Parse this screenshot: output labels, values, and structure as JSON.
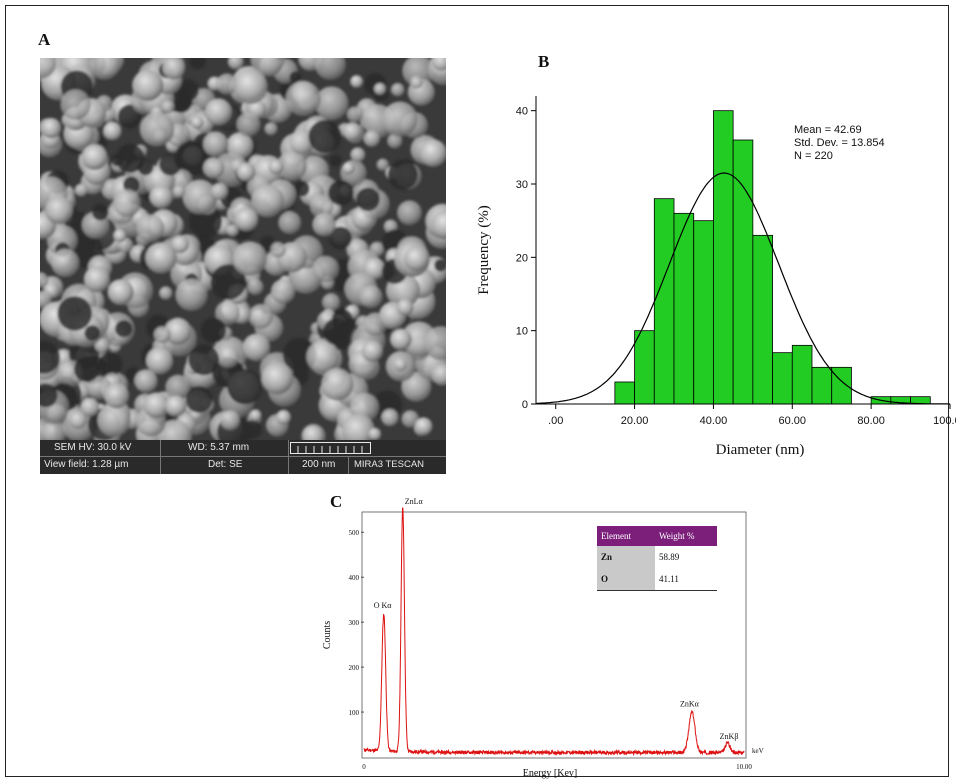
{
  "panels": {
    "a": "A",
    "b": "B",
    "c": "C"
  },
  "sem": {
    "hv": "SEM HV: 30.0 kV",
    "wd": "WD: 5.37 mm",
    "view_field": "View field: 1.28 µm",
    "det": "Det: SE",
    "scale": "200 nm",
    "brand": "MIRA3 TESCAN"
  },
  "histogram": {
    "stats": [
      "Mean = 42.69",
      "Std. Dev. = 13.854",
      "N = 220"
    ],
    "colors": {
      "bar": "#22cc22",
      "curve": "#000000"
    }
  },
  "edx_table": {
    "headers": [
      "Element",
      "Weight %"
    ],
    "rows": [
      {
        "element": "Zn",
        "weight": "58.89"
      },
      {
        "element": "O",
        "weight": "41.11"
      }
    ]
  },
  "chart_data": [
    {
      "type": "bar",
      "panel": "B",
      "xlabel": "Diameter (nm)",
      "ylabel": "Frequency (%)",
      "xlim": [
        -5,
        100
      ],
      "ylim": [
        0,
        42
      ],
      "xticks": [
        0,
        20,
        40,
        60,
        80,
        100
      ],
      "xtick_labels": [
        ".00",
        "20.00",
        "40.00",
        "60.00",
        "80.00",
        "100.00"
      ],
      "yticks": [
        0,
        10,
        20,
        30,
        40
      ],
      "bin_width": 5,
      "bins": [
        {
          "x0": 15,
          "value": 3
        },
        {
          "x0": 20,
          "value": 10
        },
        {
          "x0": 25,
          "value": 28
        },
        {
          "x0": 30,
          "value": 26
        },
        {
          "x0": 35,
          "value": 25
        },
        {
          "x0": 40,
          "value": 40
        },
        {
          "x0": 45,
          "value": 36
        },
        {
          "x0": 50,
          "value": 23
        },
        {
          "x0": 55,
          "value": 7
        },
        {
          "x0": 60,
          "value": 8
        },
        {
          "x0": 65,
          "value": 5
        },
        {
          "x0": 70,
          "value": 5
        },
        {
          "x0": 80,
          "value": 1
        },
        {
          "x0": 85,
          "value": 1
        },
        {
          "x0": 90,
          "value": 1
        }
      ],
      "curve": {
        "kind": "normal",
        "mean": 42.69,
        "sd": 13.854,
        "peak": 31.5
      }
    },
    {
      "type": "line",
      "panel": "C",
      "xlabel": "Energy [Kev]",
      "ylabel": "Counts",
      "unit_label": "keV",
      "xlim": [
        0,
        10
      ],
      "ylim": [
        0,
        545
      ],
      "xtick_labels": [
        "0",
        "10.00"
      ],
      "yticks": [
        100,
        200,
        300,
        400,
        500
      ],
      "color": "#dd1111",
      "peaks": [
        {
          "label": "O Kα",
          "x": 0.52,
          "y": 305,
          "width": 0.05
        },
        {
          "label": "ZnLα",
          "x": 1.02,
          "y": 545,
          "width": 0.045
        },
        {
          "label": "ZnKα",
          "x": 8.63,
          "y": 90,
          "width": 0.08
        },
        {
          "label": "ZnKβ",
          "x": 9.57,
          "y": 22,
          "width": 0.06
        }
      ]
    }
  ]
}
